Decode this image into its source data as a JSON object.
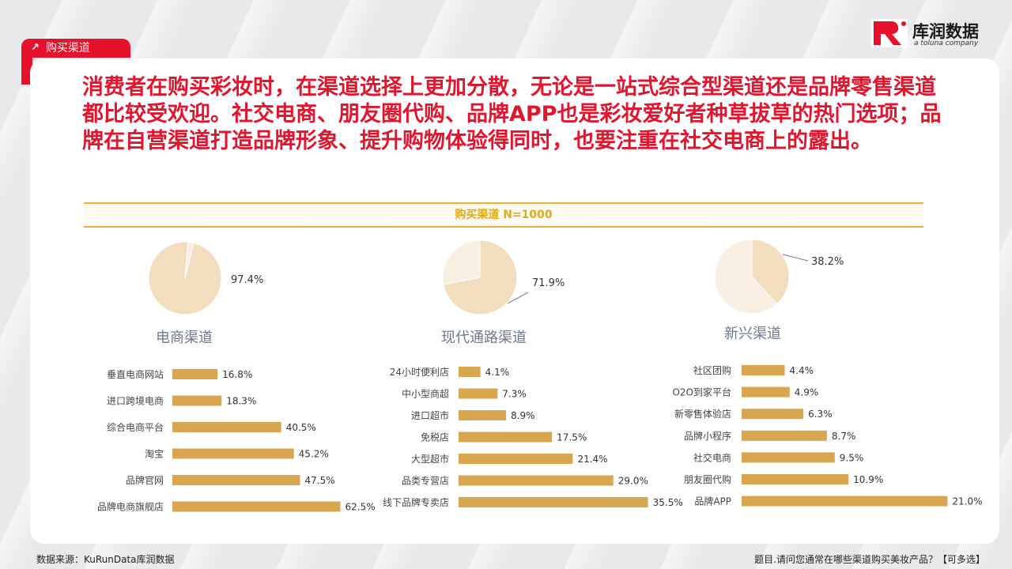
{
  "section_tag": "购买渠道",
  "logo": {
    "cn": "库润数据",
    "en": "a toluna company",
    "mark": "R"
  },
  "headline": "消费者在购买彩妆时，在渠道选择上更加分散，无论是一站式综合型渠道还是品牌零售渠道都比较受欢迎。社交电商、朋友圈代购、品牌APP也是彩妆爱好者种草拔草的热门选项；品牌在自营渠道打造品牌形象、提升购物体验得同时，也要注重在社交电商上的露出。",
  "band_title": "购买渠道 N=1000",
  "footer": {
    "source": "数据来源：KuRunData库润数据",
    "question": "题目.请问您通常在哪些渠道购买美妆产品？【可多选】"
  },
  "colors": {
    "accent": "#e6112a",
    "bar": "#d9a650",
    "pie_main": "#f2ddbf",
    "pie_rest": "#f8efe2",
    "pie_stroke": "#ffffff",
    "group_label": "#6b7a90"
  },
  "chart_data": [
    {
      "type": "pie",
      "title": "电商渠道",
      "values": [
        97.4
      ],
      "labels": [
        "97.4%"
      ]
    },
    {
      "type": "bar",
      "orientation": "horizontal",
      "categories": [
        "垂直电商网站",
        "进口跨境电商",
        "综合电商平台",
        "淘宝",
        "品牌官网",
        "品牌电商旗舰店"
      ],
      "values": [
        16.8,
        18.3,
        40.5,
        45.2,
        47.5,
        62.5
      ],
      "labels": [
        "16.8%",
        "18.3%",
        "40.5%",
        "45.2%",
        "47.5%",
        "62.5%"
      ]
    },
    {
      "type": "pie",
      "title": "现代通路渠道",
      "values": [
        71.9
      ],
      "labels": [
        "71.9%"
      ]
    },
    {
      "type": "bar",
      "orientation": "horizontal",
      "categories": [
        "24小时便利店",
        "中小型商超",
        "进口超市",
        "免税店",
        "大型超市",
        "品类专营店",
        "线下品牌专卖店"
      ],
      "values": [
        4.1,
        7.3,
        8.9,
        17.5,
        21.4,
        29.0,
        35.5
      ],
      "labels": [
        "4.1%",
        "7.3%",
        "8.9%",
        "17.5%",
        "21.4%",
        "29.0%",
        "35.5%"
      ]
    },
    {
      "type": "pie",
      "title": "新兴渠道",
      "values": [
        38.2
      ],
      "labels": [
        "38.2%"
      ]
    },
    {
      "type": "bar",
      "orientation": "horizontal",
      "categories": [
        "社区团购",
        "O2O到家平台",
        "新零售体验店",
        "品牌小程序",
        "社交电商",
        "朋友圈代购",
        "品牌APP"
      ],
      "values": [
        4.4,
        4.9,
        6.3,
        8.7,
        9.5,
        10.9,
        21.0
      ],
      "labels": [
        "4.4%",
        "4.9%",
        "6.3%",
        "8.7%",
        "9.5%",
        "10.9%",
        "21.0%"
      ]
    }
  ]
}
